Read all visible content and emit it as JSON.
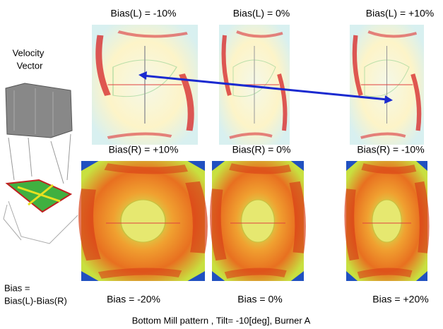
{
  "side_label": [
    "Velocity",
    "Vector"
  ],
  "bias_definition": [
    "Bias =",
    "Bias(L)-Bias(R)"
  ],
  "columns": [
    {
      "bias_l": "Bias(L) = -10%",
      "bias_r": "Bias(R) = +10%",
      "bias": "Bias = -20%"
    },
    {
      "bias_l": "Bias(L) = 0%",
      "bias_r": "Bias(R) = 0%",
      "bias": "Bias = 0%"
    },
    {
      "bias_l": "Bias(L) = +10%",
      "bias_r": "Bias(R) = -10%",
      "bias": "Bias = +20%"
    }
  ],
  "caption": "Bottom Mill pattern , Tilt= -10[deg],  Burner A"
}
